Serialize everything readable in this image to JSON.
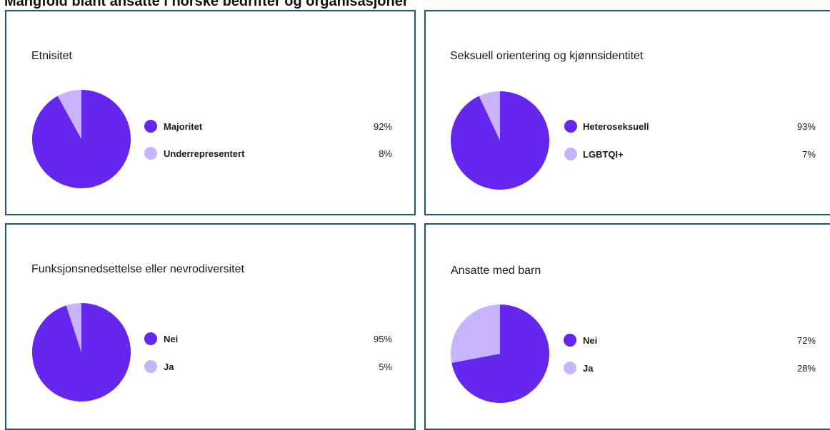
{
  "header": {
    "title": "Mangfold blant ansatte i norske bedrifter og organisasjoner"
  },
  "colors": {
    "primary": "#6526ed",
    "secondary": "#c8b4fa",
    "border": "#1f5670"
  },
  "chart_data": [
    {
      "type": "pie",
      "title": "Etnisitet",
      "categories": [
        "Majoritet",
        "Underrepresentert"
      ],
      "values": [
        92,
        8
      ],
      "labels": [
        "92%",
        "8%"
      ],
      "colors": [
        "#6526ed",
        "#c8b4fa"
      ],
      "legend": "right"
    },
    {
      "type": "pie",
      "title": "Seksuell orientering og kjønnsidentitet",
      "categories": [
        "Heteroseksuell",
        "LGBTQI+"
      ],
      "values": [
        93,
        7
      ],
      "labels": [
        "93%",
        "7%"
      ],
      "colors": [
        "#6526ed",
        "#c8b4fa"
      ],
      "legend": "right"
    },
    {
      "type": "pie",
      "title": "Funksjonsnedsettelse eller nevrodiversitet",
      "categories": [
        "Nei",
        "Ja"
      ],
      "values": [
        95,
        5
      ],
      "labels": [
        "95%",
        "5%"
      ],
      "colors": [
        "#6526ed",
        "#c8b4fa"
      ],
      "legend": "right"
    },
    {
      "type": "pie",
      "title": "Ansatte med barn",
      "categories": [
        "Nei",
        "Ja"
      ],
      "values": [
        72,
        28
      ],
      "labels": [
        "72%",
        "28%"
      ],
      "colors": [
        "#6526ed",
        "#c8b4fa"
      ],
      "legend": "right"
    }
  ]
}
